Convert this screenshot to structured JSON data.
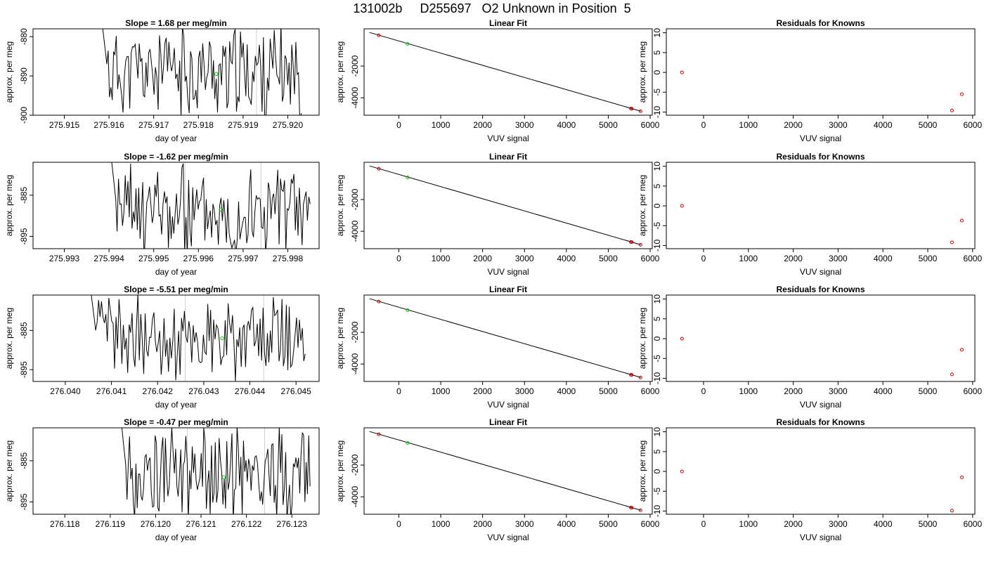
{
  "figure": {
    "main_title": "131002b     D255697   O2 Unknown in Position  5"
  },
  "chart_data": [
    {
      "type": "line",
      "title": "Slope =  1.68  per meg/min",
      "xlabel": "day of year",
      "ylabel": "approx. per meg",
      "xlim": [
        275.9143,
        275.9207
      ],
      "ylim": [
        -900,
        -878
      ],
      "xticks": [
        275.915,
        275.916,
        275.917,
        275.918,
        275.919,
        275.92
      ],
      "xtick_labels": [
        "275.915",
        "275.916",
        "275.917",
        "275.918",
        "275.919",
        "275.920"
      ],
      "yticks": [
        -900,
        -890,
        -880
      ],
      "ytick_labels": [
        "-900",
        "-890",
        "-880"
      ],
      "vlines": [
        275.9193
      ],
      "marker": {
        "x": 275.9184,
        "y": -889.5,
        "color": "#00cc00"
      },
      "series": {
        "seed": 11,
        "x_start": 275.9158,
        "x_end": 275.9203,
        "n": 150,
        "center": -889,
        "spread": 10
      }
    },
    {
      "type": "line",
      "title": "Linear Fit",
      "xlabel": "VUV signal",
      "ylabel": "approx. per meg",
      "xlim": [
        -830,
        6050
      ],
      "ylim": [
        -5100,
        350
      ],
      "xticks": [
        0,
        1000,
        2000,
        3000,
        4000,
        5000,
        6000
      ],
      "xtick_labels": [
        "0",
        "1000",
        "2000",
        "3000",
        "4000",
        "5000",
        "6000"
      ],
      "yticks": [
        -4000,
        -2000
      ],
      "ytick_labels": [
        "-4000",
        "-2000"
      ],
      "fit_line": {
        "x": [
          -700,
          5780
        ],
        "y": [
          120,
          -4850
        ]
      },
      "known_points": {
        "x": [
          -480,
          5540,
          5560,
          5770
        ],
        "y": [
          -60,
          -4680,
          -4690,
          -4850
        ],
        "color": "#cc0000"
      },
      "unknown_points": {
        "x": [
          210
        ],
        "y": [
          -610
        ],
        "color": "#00cc00"
      }
    },
    {
      "type": "scatter",
      "title": "Residuals for Knowns",
      "xlabel": "VUV signal",
      "ylabel": "approx. per meg",
      "xlim": [
        -830,
        6050
      ],
      "ylim": [
        -10.8,
        11
      ],
      "xticks": [
        0,
        1000,
        2000,
        3000,
        4000,
        5000,
        6000
      ],
      "xtick_labels": [
        "0",
        "1000",
        "2000",
        "3000",
        "4000",
        "5000",
        "6000"
      ],
      "yticks": [
        -10,
        -5,
        0,
        5,
        10
      ],
      "ytick_labels": [
        "-10",
        "-5",
        "0",
        "5",
        "10"
      ],
      "points": {
        "x": [
          -480,
          5540,
          5760
        ],
        "y": [
          0,
          -9.6,
          -5.5
        ],
        "color": "#cc0000"
      }
    },
    {
      "type": "line",
      "title": "Slope =  -1.62  per meg/min",
      "xlabel": "day of year",
      "ylabel": "approx. per meg",
      "xlim": [
        275.9923,
        275.9987
      ],
      "ylim": [
        -898,
        -877
      ],
      "xticks": [
        275.993,
        275.994,
        275.995,
        275.996,
        275.997,
        275.998
      ],
      "xtick_labels": [
        "275.993",
        "275.994",
        "275.995",
        "275.996",
        "275.997",
        "275.998"
      ],
      "yticks": [
        -895,
        -885
      ],
      "ytick_labels": [
        "-895",
        "-885"
      ],
      "vlines": [
        275.9957,
        275.9974
      ],
      "marker": {
        "x": 275.9965,
        "y": -888.5,
        "color": "#00cc00"
      },
      "series": {
        "seed": 23,
        "x_start": 275.994,
        "x_end": 275.9985,
        "n": 150,
        "center": -889,
        "spread": 10
      }
    },
    {
      "type": "line",
      "title": "Linear Fit",
      "xlabel": "VUV signal",
      "ylabel": "approx. per meg",
      "xlim": [
        -830,
        6050
      ],
      "ylim": [
        -5100,
        350
      ],
      "xticks": [
        0,
        1000,
        2000,
        3000,
        4000,
        5000,
        6000
      ],
      "xtick_labels": [
        "0",
        "1000",
        "2000",
        "3000",
        "4000",
        "5000",
        "6000"
      ],
      "yticks": [
        -4000,
        -2000
      ],
      "ytick_labels": [
        "-4000",
        "-2000"
      ],
      "fit_line": {
        "x": [
          -700,
          5780
        ],
        "y": [
          120,
          -4850
        ]
      },
      "known_points": {
        "x": [
          -480,
          5540,
          5560,
          5770
        ],
        "y": [
          -60,
          -4680,
          -4690,
          -4850
        ],
        "color": "#cc0000"
      },
      "unknown_points": {
        "x": [
          210
        ],
        "y": [
          -610
        ],
        "color": "#00cc00"
      }
    },
    {
      "type": "scatter",
      "title": "Residuals for Knowns",
      "xlabel": "VUV signal",
      "ylabel": "approx. per meg",
      "xlim": [
        -830,
        6050
      ],
      "ylim": [
        -10.8,
        11
      ],
      "xticks": [
        0,
        1000,
        2000,
        3000,
        4000,
        5000,
        6000
      ],
      "xtick_labels": [
        "0",
        "1000",
        "2000",
        "3000",
        "4000",
        "5000",
        "6000"
      ],
      "yticks": [
        -10,
        -5,
        0,
        5,
        10
      ],
      "ytick_labels": [
        "-10",
        "-5",
        "0",
        "5",
        "10"
      ],
      "points": {
        "x": [
          -480,
          5540,
          5760
        ],
        "y": [
          0,
          -9.2,
          -3.7
        ],
        "color": "#cc0000"
      }
    },
    {
      "type": "line",
      "title": "Slope =  -5.51  per meg/min",
      "xlabel": "day of year",
      "ylabel": "approx. per meg",
      "xlim": [
        276.0393,
        276.0455
      ],
      "ylim": [
        -898,
        -876
      ],
      "xticks": [
        276.04,
        276.041,
        276.042,
        276.043,
        276.044,
        276.045
      ],
      "xtick_labels": [
        "276.040",
        "276.041",
        "276.042",
        "276.043",
        "276.044",
        "276.045"
      ],
      "yticks": [
        -895,
        -885
      ],
      "ytick_labels": [
        "-895",
        "-885"
      ],
      "vlines": [
        276.0426,
        276.0443
      ],
      "marker": {
        "x": 276.0434,
        "y": -887,
        "color": "#00cc00"
      },
      "series": {
        "seed": 37,
        "x_start": 276.0405,
        "x_end": 276.0452,
        "n": 150,
        "center": -887,
        "spread": 9
      }
    },
    {
      "type": "line",
      "title": "Linear Fit",
      "xlabel": "VUV signal",
      "ylabel": "approx. per meg",
      "xlim": [
        -830,
        6050
      ],
      "ylim": [
        -5100,
        350
      ],
      "xticks": [
        0,
        1000,
        2000,
        3000,
        4000,
        5000,
        6000
      ],
      "xtick_labels": [
        "0",
        "1000",
        "2000",
        "3000",
        "4000",
        "5000",
        "6000"
      ],
      "yticks": [
        -4000,
        -2000
      ],
      "ytick_labels": [
        "-4000",
        "-2000"
      ],
      "fit_line": {
        "x": [
          -700,
          5780
        ],
        "y": [
          120,
          -4850
        ]
      },
      "known_points": {
        "x": [
          -480,
          5540,
          5560,
          5770
        ],
        "y": [
          -60,
          -4680,
          -4690,
          -4850
        ],
        "color": "#cc0000"
      },
      "unknown_points": {
        "x": [
          210
        ],
        "y": [
          -610
        ],
        "color": "#00cc00"
      }
    },
    {
      "type": "scatter",
      "title": "Residuals for Knowns",
      "xlabel": "VUV signal",
      "ylabel": "approx. per meg",
      "xlim": [
        -830,
        6050
      ],
      "ylim": [
        -10.8,
        11
      ],
      "xticks": [
        0,
        1000,
        2000,
        3000,
        4000,
        5000,
        6000
      ],
      "xtick_labels": [
        "0",
        "1000",
        "2000",
        "3000",
        "4000",
        "5000",
        "6000"
      ],
      "yticks": [
        -10,
        -5,
        0,
        5,
        10
      ],
      "ytick_labels": [
        "-10",
        "-5",
        "0",
        "5",
        "10"
      ],
      "points": {
        "x": [
          -480,
          5540,
          5760
        ],
        "y": [
          0,
          -9.0,
          -2.8
        ],
        "color": "#cc0000"
      }
    },
    {
      "type": "line",
      "title": "Slope =  -0.47  per meg/min",
      "xlabel": "day of year",
      "ylabel": "approx. per meg",
      "xlim": [
        276.1173,
        276.1236
      ],
      "ylim": [
        -898,
        -877
      ],
      "xticks": [
        276.118,
        276.119,
        276.12,
        276.121,
        276.122,
        276.123
      ],
      "xtick_labels": [
        "276.118",
        "276.119",
        "276.120",
        "276.121",
        "276.122",
        "276.123"
      ],
      "yticks": [
        -895,
        -885
      ],
      "ytick_labels": [
        "-895",
        "-885"
      ],
      "vlines": [
        276.1207,
        276.1224
      ],
      "marker": {
        "x": 276.1215,
        "y": -889,
        "color": "#00cc00"
      },
      "series": {
        "seed": 53,
        "x_start": 276.1192,
        "x_end": 276.1234,
        "n": 150,
        "center": -888,
        "spread": 10
      }
    },
    {
      "type": "line",
      "title": "Linear Fit",
      "xlabel": "VUV signal",
      "ylabel": "approx. per meg",
      "xlim": [
        -830,
        6050
      ],
      "ylim": [
        -5100,
        350
      ],
      "xticks": [
        0,
        1000,
        2000,
        3000,
        4000,
        5000,
        6000
      ],
      "xtick_labels": [
        "0",
        "1000",
        "2000",
        "3000",
        "4000",
        "5000",
        "6000"
      ],
      "yticks": [
        -4000,
        -2000
      ],
      "ytick_labels": [
        "-4000",
        "-2000"
      ],
      "fit_line": {
        "x": [
          -700,
          5780
        ],
        "y": [
          120,
          -4850
        ]
      },
      "known_points": {
        "x": [
          -480,
          5540,
          5560,
          5770
        ],
        "y": [
          -60,
          -4680,
          -4690,
          -4850
        ],
        "color": "#cc0000"
      },
      "unknown_points": {
        "x": [
          210
        ],
        "y": [
          -610
        ],
        "color": "#00cc00"
      }
    },
    {
      "type": "scatter",
      "title": "Residuals for Knowns",
      "xlabel": "VUV signal",
      "ylabel": "approx. per meg",
      "xlim": [
        -830,
        6050
      ],
      "ylim": [
        -10.8,
        11
      ],
      "xticks": [
        0,
        1000,
        2000,
        3000,
        4000,
        5000,
        6000
      ],
      "xtick_labels": [
        "0",
        "1000",
        "2000",
        "3000",
        "4000",
        "5000",
        "6000"
      ],
      "yticks": [
        -10,
        -5,
        0,
        5,
        10
      ],
      "ytick_labels": [
        "-10",
        "-5",
        "0",
        "5",
        "10"
      ],
      "points": {
        "x": [
          -480,
          5540,
          5760
        ],
        "y": [
          0,
          -9.9,
          -1.5
        ],
        "color": "#cc0000"
      }
    }
  ]
}
